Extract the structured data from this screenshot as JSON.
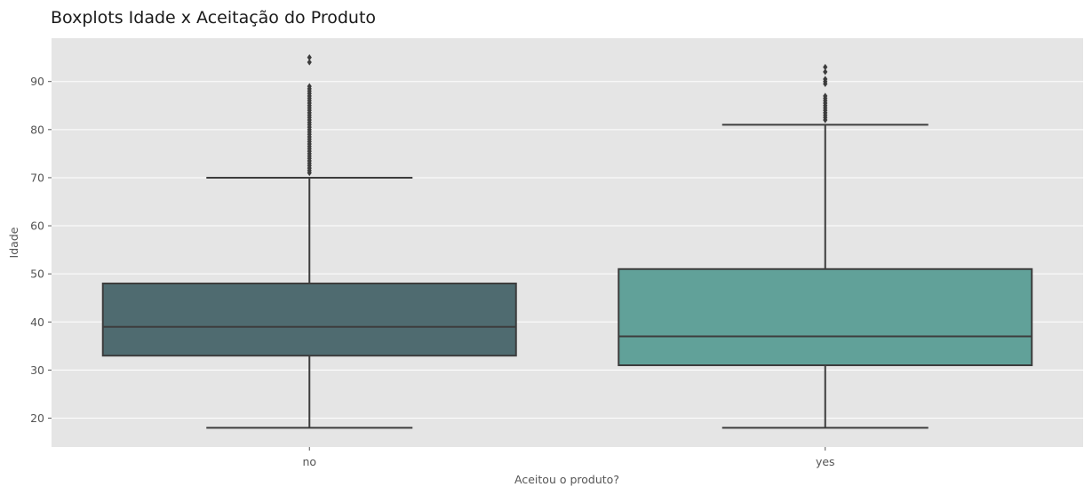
{
  "chart_data": {
    "type": "boxplot",
    "title": "Boxplots Idade x Aceitação do Produto",
    "xlabel": "Aceitou o produto?",
    "ylabel": "Idade",
    "ylim": [
      14,
      99
    ],
    "yticks": [
      20,
      30,
      40,
      50,
      60,
      70,
      80,
      90
    ],
    "grid": true,
    "categories": [
      "no",
      "yes"
    ],
    "boxes": [
      {
        "category": "no",
        "color": "#4f6b70",
        "whisker_low": 18,
        "q1": 33,
        "median": 39,
        "q3": 48,
        "whisker_high": 70,
        "outliers": [
          71,
          71.5,
          72,
          72.5,
          73,
          73.5,
          74,
          74.5,
          75,
          75.5,
          76,
          76.5,
          77,
          77.5,
          78,
          78.5,
          79,
          79.5,
          80,
          80.5,
          81,
          81.5,
          82,
          82.5,
          83,
          83.5,
          84,
          84.5,
          85,
          85.5,
          86,
          86.5,
          87,
          87.5,
          88,
          88.5,
          89,
          94,
          95
        ]
      },
      {
        "category": "yes",
        "color": "#61a199",
        "whisker_low": 18,
        "q1": 31,
        "median": 37,
        "q3": 51,
        "whisker_high": 81,
        "outliers": [
          82,
          82.5,
          83,
          83.5,
          84,
          84.5,
          85,
          85.5,
          86,
          86.5,
          87,
          89.5,
          90,
          90.5,
          92,
          93
        ]
      }
    ],
    "colors": {
      "plot_background": "#e5e5e5",
      "grid": "#ffffff",
      "box_edge": "#3d3d3d"
    }
  }
}
